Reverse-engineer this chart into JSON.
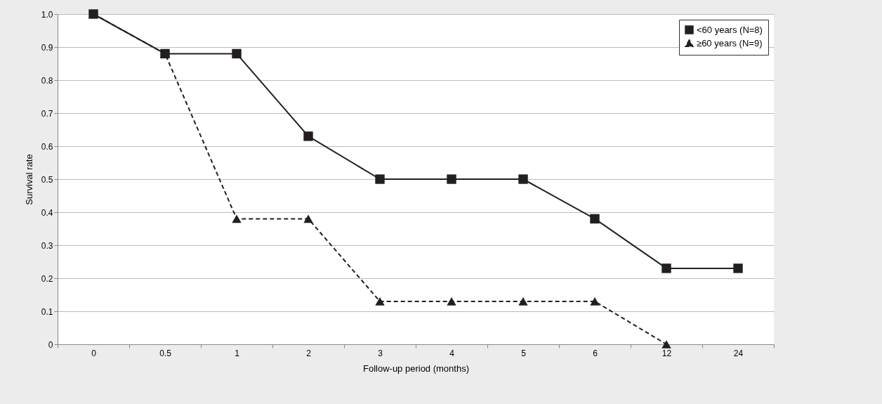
{
  "chart_data": {
    "type": "line",
    "xlabel": "Follow-up period (months)",
    "ylabel": "Survival rate",
    "categories": [
      "0",
      "0.5",
      "1",
      "2",
      "3",
      "4",
      "5",
      "6",
      "12",
      "24"
    ],
    "series": [
      {
        "name": "<60 years (N=8)",
        "color": "#231f20",
        "marker": "square",
        "line_style": "solid",
        "values": [
          1.0,
          0.88,
          0.88,
          0.63,
          0.5,
          0.5,
          0.5,
          0.38,
          0.23,
          0.23
        ]
      },
      {
        "name": "≥60 years (N=9)",
        "color": "#231f20",
        "marker": "triangle",
        "line_style": "dashed",
        "values": [
          1.0,
          0.88,
          0.38,
          0.38,
          0.13,
          0.13,
          0.13,
          0.13,
          0,
          null
        ]
      }
    ],
    "ylim": [
      0,
      1
    ],
    "yticks": [
      0,
      0.1,
      0.2,
      0.3,
      0.4,
      0.5,
      0.6,
      0.7,
      0.8,
      0.9,
      {
        "value": 1,
        "label": "1.0"
      }
    ],
    "grid": "y",
    "legend": "top right"
  }
}
